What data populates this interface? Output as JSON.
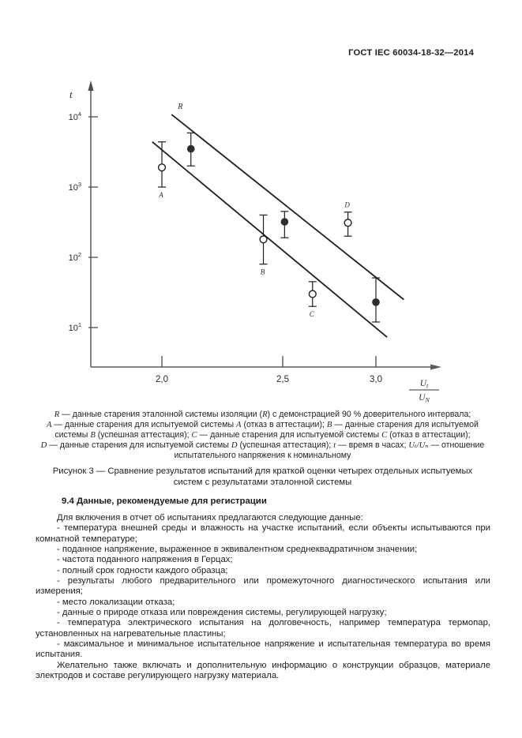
{
  "page": {
    "header": "ГОСТ IEC 60034-18-32—2014"
  },
  "figure": {
    "legend_lines": [
      "R — данные старения эталонной системы изоляции (R) с демонстрацией 90 % доверительного интервала;",
      "A — данные старения для испытуемой системы A (отказ в аттестации); B — данные старения для испытуемой",
      "системы B (успешная аттестация); C — данные старения для испытуемой системы C (отказ в аттестации);",
      "D — данные старения для испытуемой системы D (успешная аттестация); t — время в часах; Uₜ/Uₙ — отношение",
      "испытательного напряжения к номинальному"
    ],
    "caption_line1": "Рисунок 3 — Сравнение результатов испытаний для краткой оценки четырех отдельных испытуемых",
    "caption_line2": "систем с результатами эталонной системы"
  },
  "section": {
    "heading": "9.4 Данные, рекомендуемые для регистрации",
    "paragraphs": [
      "Для включения в отчет об испытаниях предлагаются следующие данные:",
      "- температура внешней среды и влажность на участке испытаний, если объекты испытываются при комнатной температуре;",
      "- поданное напряжение, выраженное в эквивалентном среднеквадратичном значении;",
      "- частота поданного напряжения в Герцах;",
      "- полный срок годности каждого образца;",
      "- результаты любого предварительного или промежуточного диагностического испытания или измерения;",
      "- место локализации отказа;",
      "- данные о природе отказа или повреждения системы, регулирующей нагрузку;",
      "- температура электрического испытания на долговечность, например температура термопар, установленных на нагревательные пластины;",
      "- максимальное и минимальное испытательное напряжение и испытательная температура во время испытания.",
      "Желательно также включать и дополнительную информацию о конструкции образцов, материале электродов и составе регулирующего нагрузку материала."
    ]
  },
  "chart_data": {
    "type": "scatter",
    "title": "",
    "ylabel": "t",
    "y_scale": "log",
    "xlabel": {
      "numerator": "U",
      "numerator_sub": "t",
      "denominator": "U",
      "denominator_sub": "N"
    },
    "xlim": [
      1.7,
      3.17
    ],
    "ylim": [
      3,
      25000
    ],
    "grid": false,
    "x_ticks": [
      {
        "value": 2.0,
        "label": "2,0"
      },
      {
        "value": 2.5,
        "label": "2,5"
      },
      {
        "value": 3.0,
        "label": "3,0"
      }
    ],
    "y_ticks": [
      {
        "value": 10000,
        "base": "10",
        "exp": "4"
      },
      {
        "value": 1000,
        "base": "10",
        "exp": "3"
      },
      {
        "value": 100,
        "base": "10",
        "exp": "2"
      },
      {
        "value": 10,
        "base": "10",
        "exp": "1"
      }
    ],
    "lines": [
      {
        "name": "reference-line-R",
        "label": "R",
        "points": [
          [
            2.04,
            10800
          ],
          [
            3.15,
            25
          ]
        ]
      },
      {
        "name": "lower-confidence-line",
        "label": "",
        "points": [
          [
            1.96,
            4400
          ],
          [
            3.06,
            7.3
          ]
        ]
      }
    ],
    "points": [
      {
        "name": "system-A",
        "x": 2.0,
        "y": 1900,
        "y_low": 1000,
        "y_high": 4400,
        "marker": "open",
        "label": "A",
        "label_pos": "below"
      },
      {
        "name": "reference-point-1",
        "x": 2.12,
        "y": 3500,
        "y_low": 2000,
        "y_high": 5900,
        "marker": "filled",
        "label": "",
        "label_pos": ""
      },
      {
        "name": "system-B",
        "x": 2.42,
        "y": 180,
        "y_low": 80,
        "y_high": 400,
        "marker": "open",
        "label": "B",
        "label_pos": "below"
      },
      {
        "name": "reference-point-2",
        "x": 2.51,
        "y": 320,
        "y_low": 190,
        "y_high": 450,
        "marker": "filled",
        "label": "",
        "label_pos": ""
      },
      {
        "name": "system-C",
        "x": 2.66,
        "y": 30,
        "y_low": 20,
        "y_high": 45,
        "marker": "open",
        "label": "C",
        "label_pos": "below"
      },
      {
        "name": "system-D",
        "x": 2.85,
        "y": 310,
        "y_low": 200,
        "y_high": 440,
        "marker": "open",
        "label": "D",
        "label_pos": "above"
      },
      {
        "name": "reference-point-3",
        "x": 3.0,
        "y": 23,
        "y_low": 12,
        "y_high": 51,
        "marker": "filled",
        "label": "",
        "label_pos": ""
      }
    ]
  }
}
